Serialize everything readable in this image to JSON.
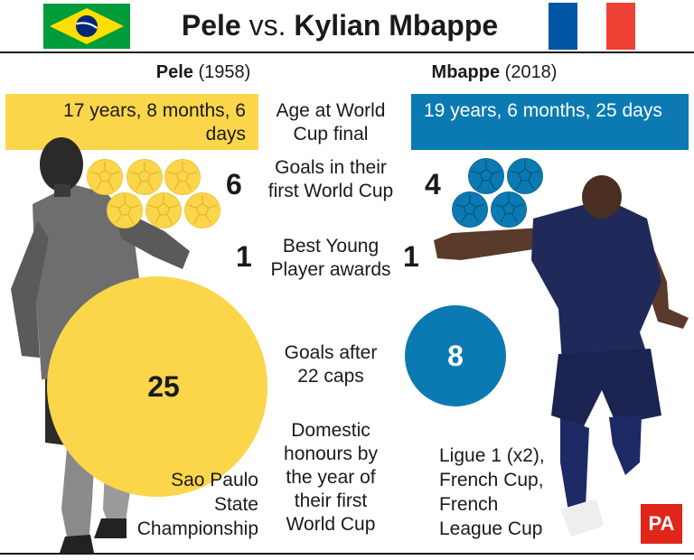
{
  "header": {
    "title_name1": "Pele",
    "title_vs": "vs.",
    "title_name2": "Kylian Mbappe",
    "flag_left": "brazil-flag",
    "flag_right": "france-flag"
  },
  "colors": {
    "pele_accent": "#fbd64b",
    "mbappe_accent": "#0b7ab2",
    "brazil_green": "#009b3a",
    "brazil_yellow": "#fedf00",
    "brazil_blue": "#002776",
    "france_blue": "#0055a4",
    "france_red": "#ef4135",
    "pa_red": "#e1251b"
  },
  "pele": {
    "name": "Pele",
    "year": "(1958)",
    "age_at_final": "17 years, 8 months, 6 days",
    "goals_first_world_cup": "6",
    "best_young_player_awards": "1",
    "goals_after_22_caps": "25",
    "domestic_honours": [
      "Sao Paulo",
      "State",
      "Championship"
    ]
  },
  "mbappe": {
    "name": "Mbappe",
    "year": "(2018)",
    "age_at_final": "19 years, 6 months, 25 days",
    "goals_first_world_cup": "4",
    "best_young_player_awards": "1",
    "goals_after_22_caps": "8",
    "domestic_honours": [
      "Ligue 1 (x2),",
      "French Cup,",
      "French",
      "League Cup"
    ]
  },
  "categories": {
    "age": [
      "Age at World",
      "Cup final"
    ],
    "goals": [
      "Goals in their",
      "first World Cup"
    ],
    "awards": [
      "Best Young",
      "Player awards"
    ],
    "caps": [
      "Goals after",
      "22 caps"
    ],
    "honours": [
      "Domestic",
      "honours by",
      "the year of",
      "their first",
      "World Cup"
    ]
  },
  "branding": {
    "logo": "PA"
  },
  "icons": {
    "ball": "football-icon",
    "pele_photo": "pele-photo",
    "mbappe_photo": "mbappe-photo"
  }
}
